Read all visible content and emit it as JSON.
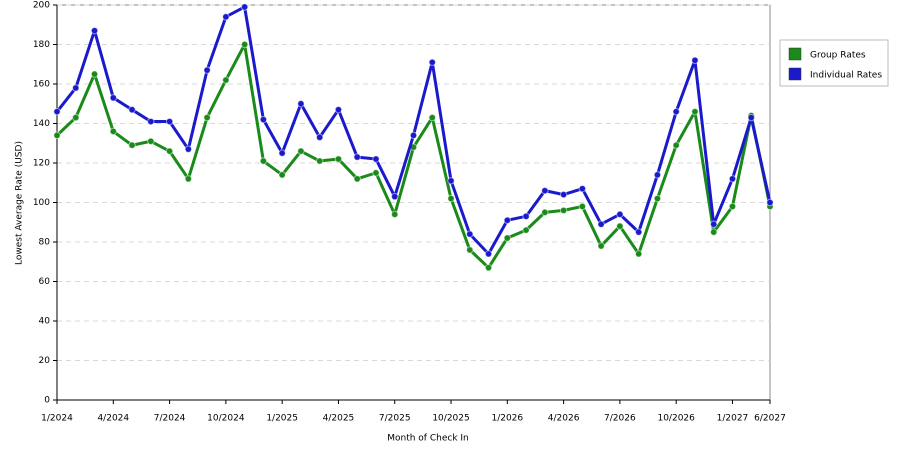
{
  "chart_data": {
    "type": "line",
    "x_label": "Month of Check In",
    "y_label": "Lowest Average Rate (USD)",
    "categories": [
      "1/2024",
      null,
      null,
      "4/2024",
      null,
      null,
      "7/2024",
      null,
      null,
      "10/2024",
      null,
      null,
      "1/2025",
      null,
      null,
      "4/2025",
      null,
      null,
      "7/2025",
      null,
      null,
      "10/2025",
      null,
      null,
      "1/2026",
      null,
      null,
      "4/2026",
      null,
      null,
      "7/2026",
      null,
      null,
      "10/2026",
      null,
      null,
      "1/2027",
      null,
      "6/2027"
    ],
    "series": [
      {
        "name": "Group Rates",
        "color": "#1a8a1a",
        "values": [
          134,
          143,
          165,
          136,
          129,
          131,
          126,
          112,
          143,
          162,
          180,
          121,
          114,
          126,
          121,
          122,
          112,
          115,
          94,
          128,
          143,
          102,
          76,
          67,
          82,
          86,
          95,
          96,
          98,
          78,
          88,
          74,
          102,
          129,
          146,
          85,
          98,
          144,
          98
        ]
      },
      {
        "name": "Individual Rates",
        "color": "#1a1acc",
        "values": [
          146,
          158,
          187,
          153,
          147,
          141,
          141,
          127,
          167,
          194,
          199,
          142,
          125,
          150,
          133,
          147,
          123,
          122,
          103,
          134,
          171,
          111,
          84,
          74,
          91,
          93,
          106,
          104,
          107,
          89,
          94,
          85,
          114,
          146,
          172,
          89,
          112,
          143,
          100
        ]
      }
    ],
    "ylim": [
      0,
      200
    ],
    "yticks": [
      0,
      20,
      40,
      60,
      80,
      100,
      120,
      140,
      160,
      180,
      200
    ],
    "grid": true,
    "legend": "right"
  }
}
